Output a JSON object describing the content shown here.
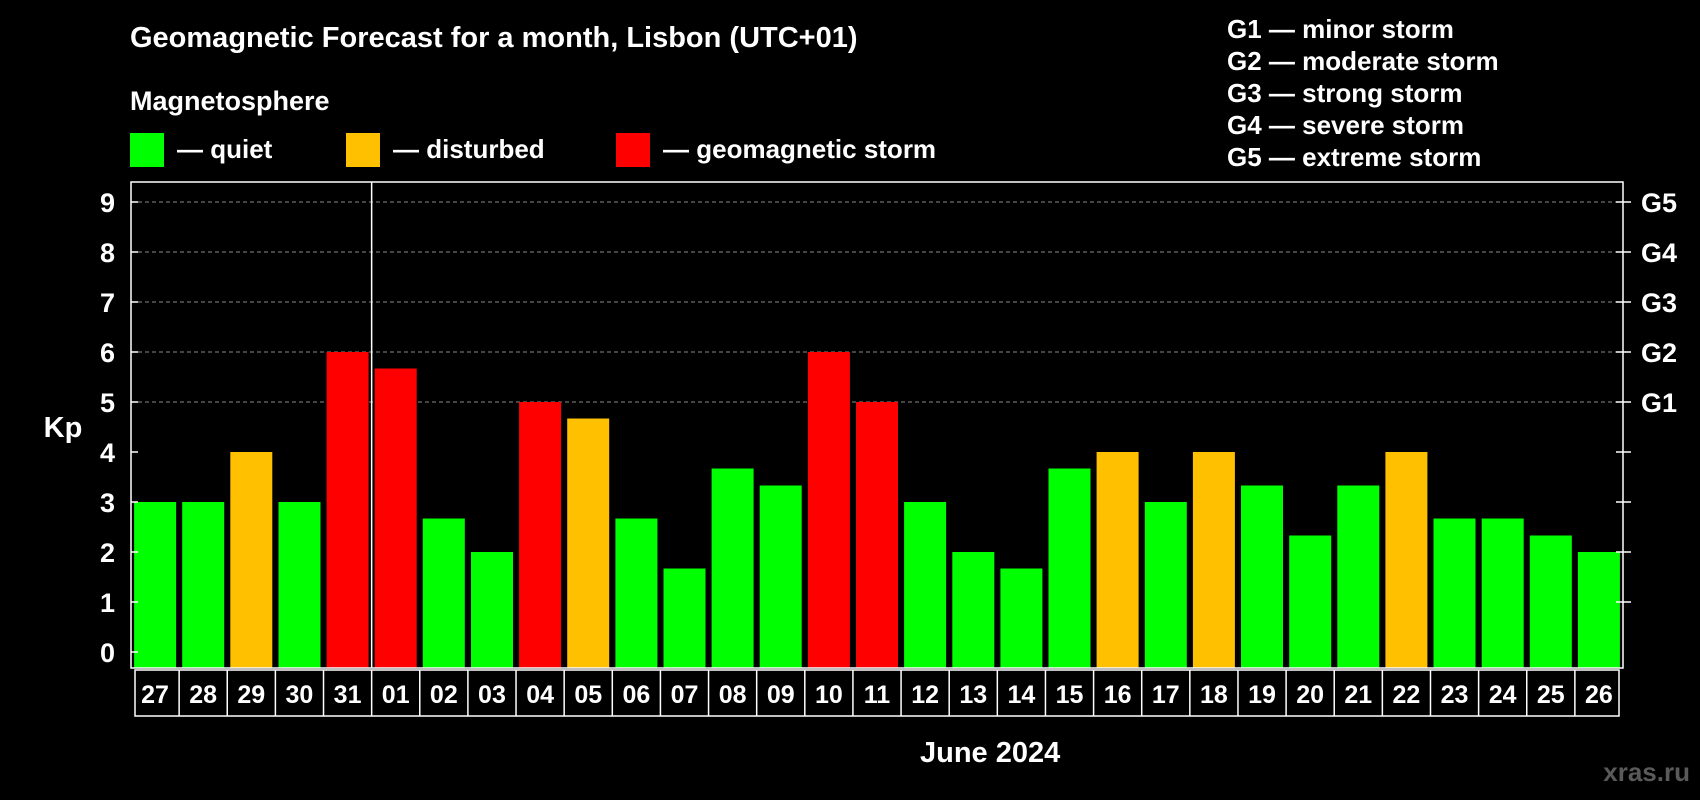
{
  "title": "Geomagnetic Forecast for a month, Lisbon (UTC+01)",
  "magnetosphere_label": "Magnetosphere",
  "legend": [
    {
      "label": "— quiet",
      "color": "#00ff00"
    },
    {
      "label": "— disturbed",
      "color": "#ffc000"
    },
    {
      "label": "— geomagnetic storm",
      "color": "#ff0000"
    }
  ],
  "storm_scale": [
    {
      "label": "G1 — minor storm"
    },
    {
      "label": "G2 — moderate storm"
    },
    {
      "label": "G3 — strong storm"
    },
    {
      "label": "G4 — severe storm"
    },
    {
      "label": "G5 — extreme storm"
    }
  ],
  "watermark": "xras.ru",
  "chart_data": {
    "type": "bar",
    "title": "Geomagnetic Forecast for a month, Lisbon (UTC+01)",
    "xlabel": "June 2024",
    "ylabel": "Kp",
    "ylim": [
      0,
      9
    ],
    "yticks": [
      "0",
      "1",
      "2",
      "3",
      "4",
      "5",
      "6",
      "7",
      "8",
      "9"
    ],
    "right_ticks": [
      {
        "value": 5,
        "label": "G1"
      },
      {
        "value": 6,
        "label": "G2"
      },
      {
        "value": 7,
        "label": "G3"
      },
      {
        "value": 8,
        "label": "G4"
      },
      {
        "value": 9,
        "label": "G5"
      }
    ],
    "grid": "dashed horizontal at Kp 5-9",
    "month_separator_after": "31",
    "categories": [
      "27",
      "28",
      "29",
      "30",
      "31",
      "01",
      "02",
      "03",
      "04",
      "05",
      "06",
      "07",
      "08",
      "09",
      "10",
      "11",
      "12",
      "13",
      "14",
      "15",
      "16",
      "17",
      "18",
      "19",
      "20",
      "21",
      "22",
      "23",
      "24",
      "25",
      "26"
    ],
    "values": [
      3,
      3,
      4,
      3,
      6,
      5.67,
      2.67,
      2,
      5,
      4.67,
      2.67,
      1.67,
      3.67,
      3.33,
      6,
      5,
      3,
      2,
      1.67,
      3.67,
      4,
      3,
      4,
      3.33,
      2.33,
      3.33,
      4,
      2.67,
      2.67,
      2.33,
      2
    ],
    "levels": [
      "quiet",
      "quiet",
      "disturbed",
      "quiet",
      "storm",
      "storm",
      "quiet",
      "quiet",
      "storm",
      "disturbed",
      "quiet",
      "quiet",
      "quiet",
      "quiet",
      "storm",
      "storm",
      "quiet",
      "quiet",
      "quiet",
      "quiet",
      "disturbed",
      "quiet",
      "disturbed",
      "quiet",
      "quiet",
      "quiet",
      "disturbed",
      "quiet",
      "quiet",
      "quiet",
      "quiet"
    ],
    "colors": {
      "quiet": "#00ff00",
      "disturbed": "#ffc000",
      "storm": "#ff0000"
    }
  }
}
